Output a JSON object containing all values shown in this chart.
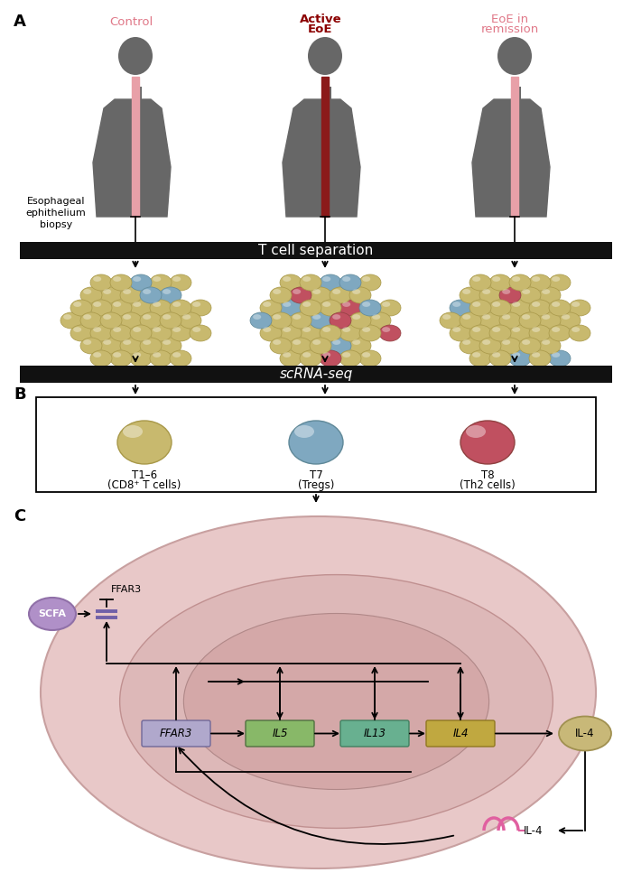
{
  "bg_color": "#ffffff",
  "label_A": "A",
  "label_B": "B",
  "label_C": "C",
  "control_label": "Control",
  "active_eoe_line1": "Active",
  "active_eoe_line2": "EoE",
  "eoe_remission_line1": "EoE in",
  "eoe_remission_line2": "remission",
  "biopsy_label": "Esophageal\nephithelium\nbiopsy",
  "t_cell_sep_label": "T cell separation",
  "scrna_seq_label": "scRNA-seq",
  "t16_line1": "T1–6",
  "t16_line2": "(CD8⁺ T cells)",
  "t7_line1": "T7",
  "t7_line2": "(Tregs)",
  "t8_line1": "T8",
  "t8_line2": "(Th2 cells)",
  "silhouette_color": "#676767",
  "control_esoph_color": "#e8a0a8",
  "active_esoph_color": "#8b1a1a",
  "remission_esoph_color": "#e8a0a8",
  "black_bar_color": "#111111",
  "cell_yellow": "#c8b96e",
  "cell_yellow_dark": "#a89848",
  "cell_blue": "#7fa8c0",
  "cell_blue_dark": "#5f8898",
  "cell_red": "#c05060",
  "cell_red_dark": "#904040",
  "cell_outer_bg": "#e8c8c8",
  "cell_outer_border": "#c8a0a0",
  "cell_inner_bg": "#ddb8b8",
  "cell_inner_border": "#c09090",
  "nucleus_bg": "#d4a8a8",
  "nucleus_border": "#b08888",
  "scfa_color": "#b090c8",
  "scfa_border": "#9070a8",
  "ffar3_box_color": "#b0a8cc",
  "ffar3_box_border": "#706898",
  "il5_box_color": "#88b868",
  "il5_box_border": "#507040",
  "il13_box_color": "#68b090",
  "il13_box_border": "#408060",
  "il4_box_color": "#c0a840",
  "il4_box_border": "#907820",
  "il4_circle_color": "#c8b878",
  "il4_circle_border": "#a09050",
  "il4_receptor_color": "#e060a0",
  "control_color": "#e07888",
  "active_color": "#8b0000",
  "remission_color": "#e07888",
  "arrow_lw": 1.3
}
